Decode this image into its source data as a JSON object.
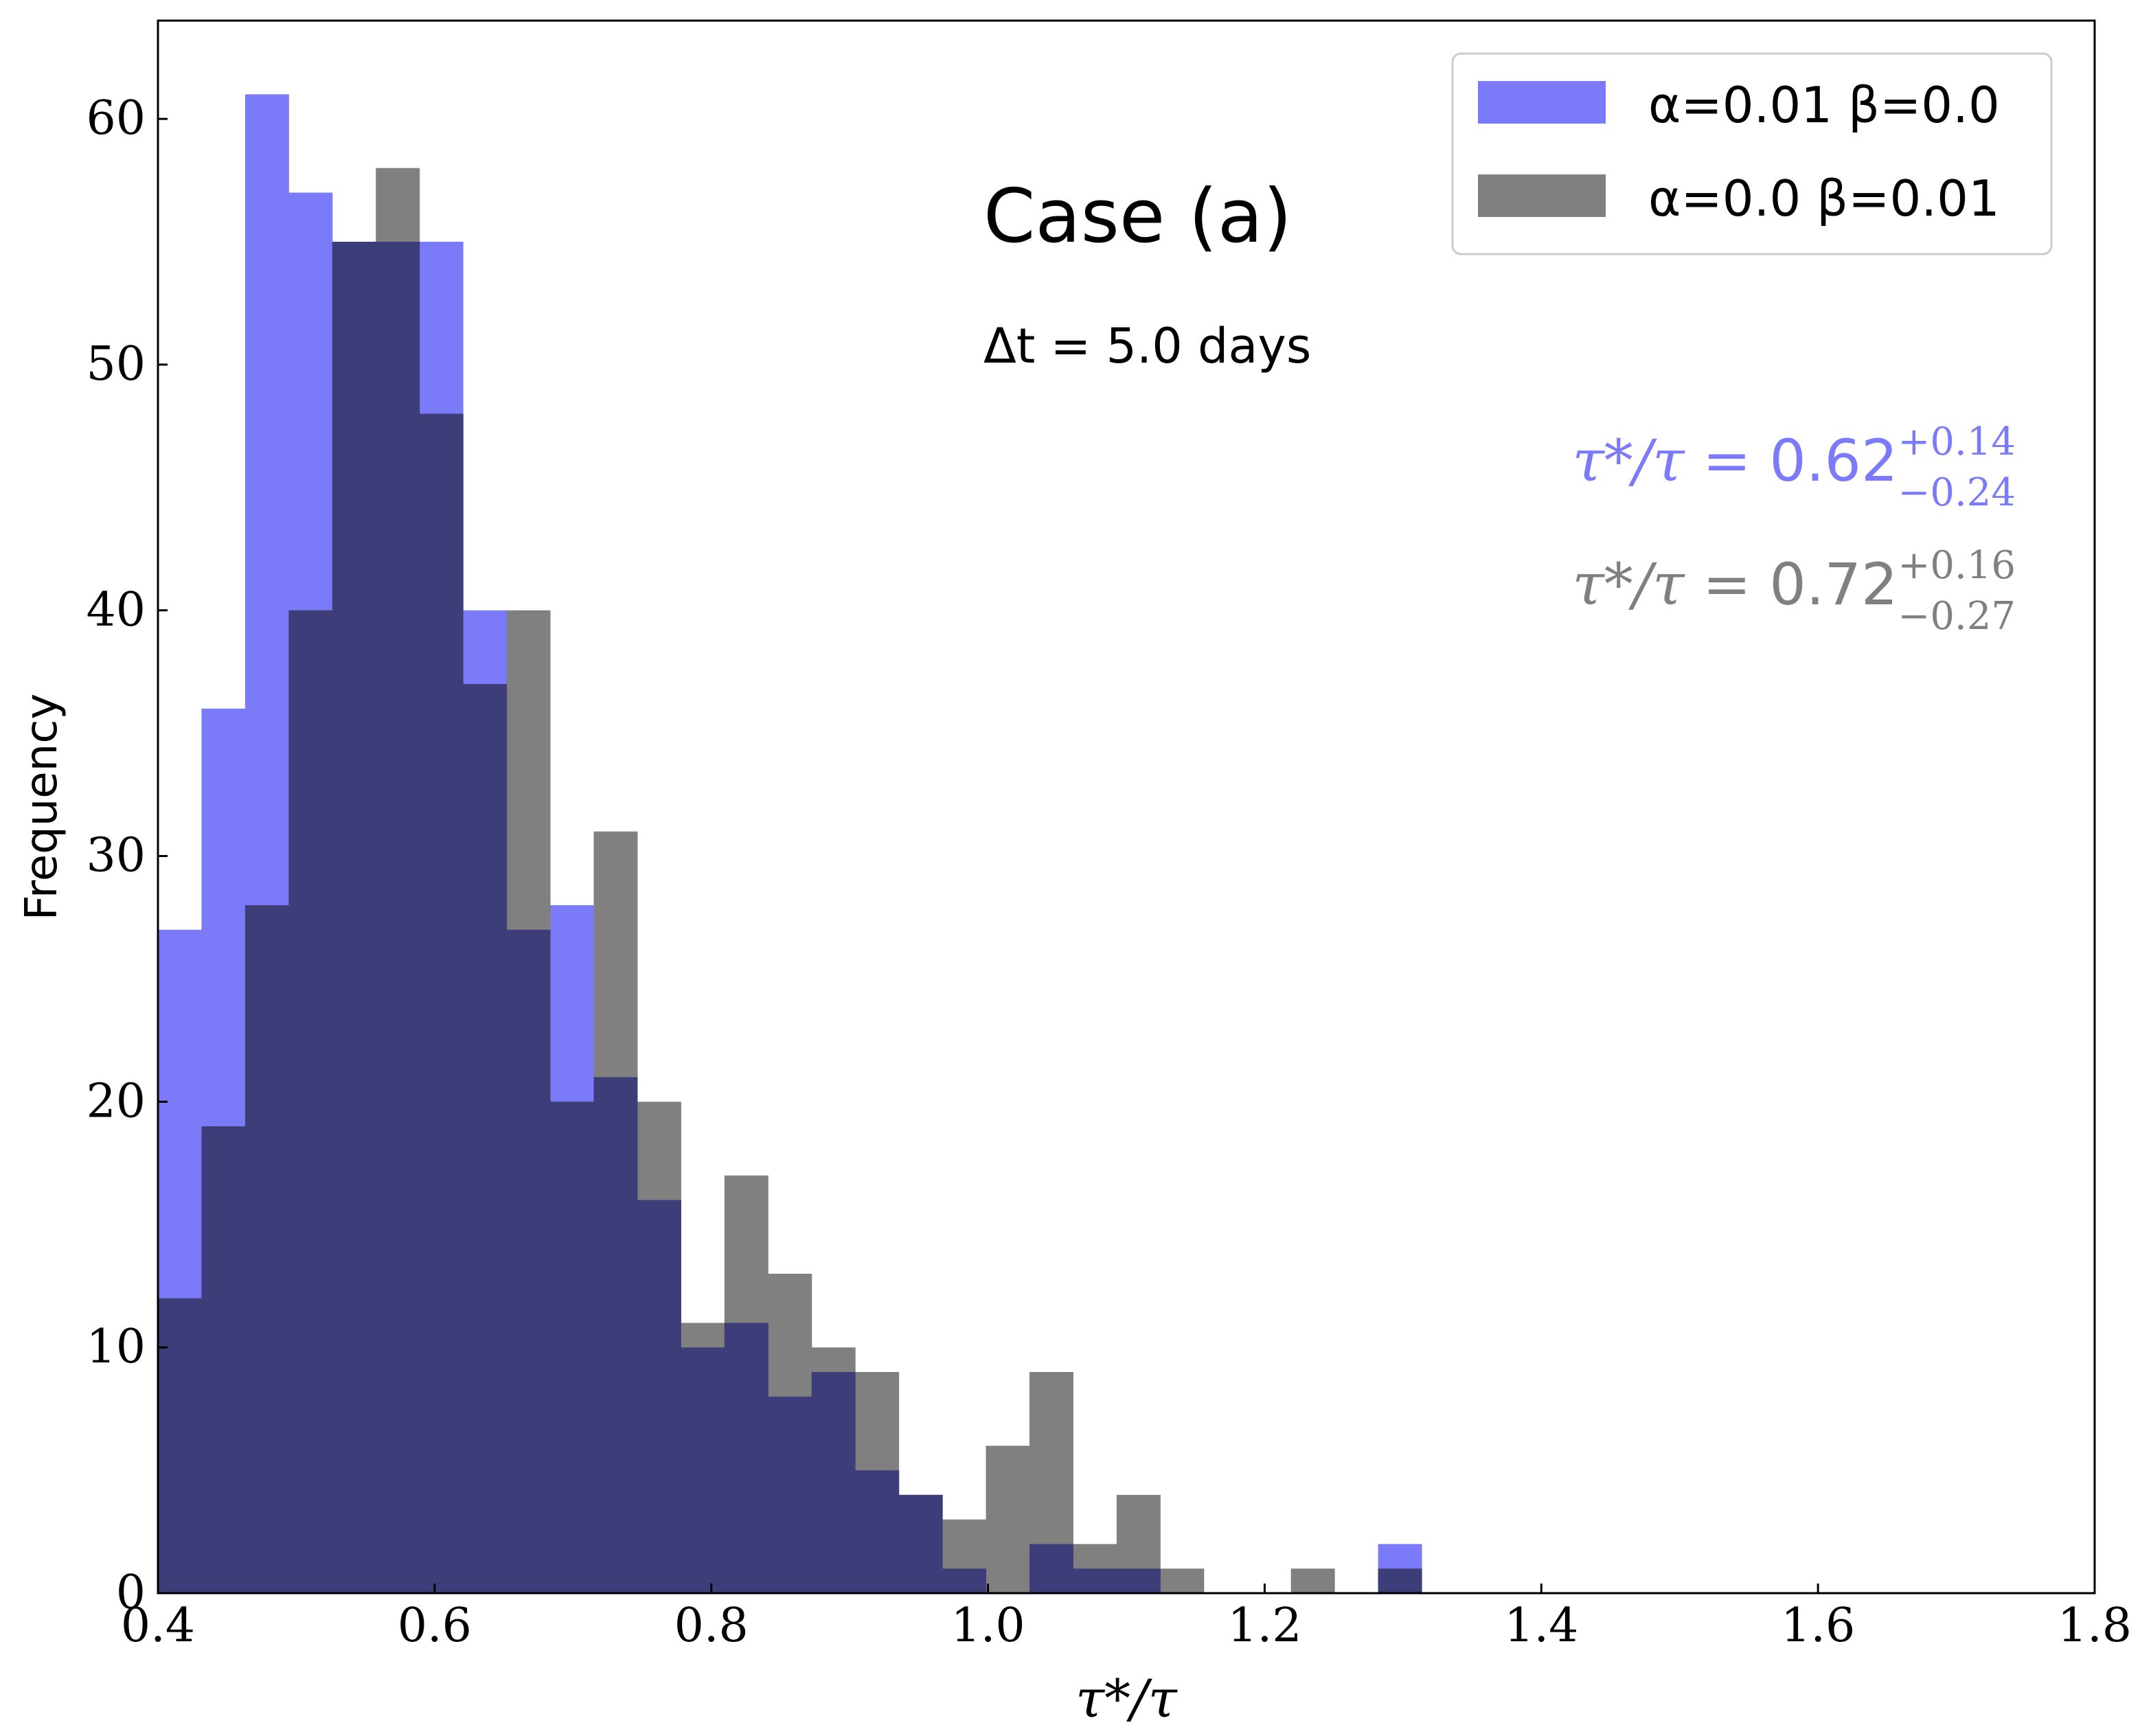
{
  "chart_data": {
    "type": "bar",
    "title": "Case (a)",
    "subtitle": "Δt = 5.0 days",
    "xlabel": "τ*/τ",
    "ylabel": "Frequency",
    "xlim": [
      0.4,
      1.8
    ],
    "ylim": [
      0,
      64
    ],
    "x_ticks": [
      "0.4",
      "0.6",
      "0.8",
      "1.0",
      "1.2",
      "1.4",
      "1.6",
      "1.8"
    ],
    "y_ticks": [
      "0",
      "10",
      "20",
      "30",
      "40",
      "50",
      "60"
    ],
    "grid": false,
    "legend_position": "top-right",
    "series": [
      {
        "name": "α=0.01 β=0.0",
        "color": "#7b7bfa",
        "bin_start": 0.4,
        "bin_width": 0.0315,
        "values": [
          27,
          36,
          61,
          57,
          55,
          55,
          55,
          40,
          27,
          28,
          21,
          16,
          10,
          11,
          8,
          9,
          5,
          4,
          1,
          0,
          2,
          1,
          1,
          0,
          0,
          0,
          0,
          0,
          2
        ]
      },
      {
        "name": "α=0.0 β=0.01",
        "color": "#808080",
        "bin_start": 0.4,
        "bin_width": 0.0315,
        "values": [
          12,
          19,
          28,
          40,
          55,
          58,
          48,
          37,
          40,
          20,
          31,
          20,
          11,
          17,
          13,
          10,
          9,
          4,
          3,
          6,
          9,
          2,
          4,
          1,
          0,
          0,
          1,
          0,
          1
        ]
      }
    ],
    "annotations": [
      {
        "prefix": "τ*/τ = ",
        "value": "0.62",
        "sup": "+0.14",
        "sub": "−0.24",
        "color": "#7b7bfa"
      },
      {
        "prefix": "τ*/τ = ",
        "value": "0.72",
        "sup": "+0.16",
        "sub": "−0.27",
        "color": "#808080"
      }
    ]
  }
}
